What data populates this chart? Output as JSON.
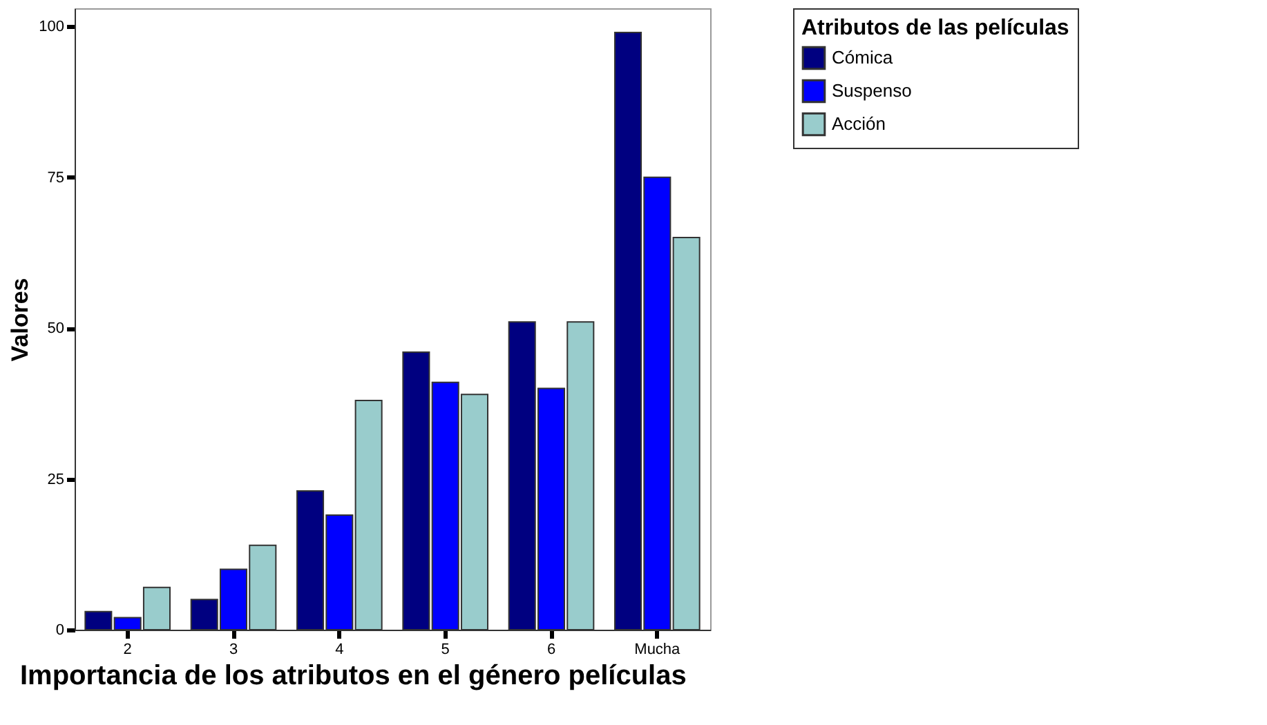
{
  "chart_data": {
    "type": "bar",
    "xlabel": "Importancia de los atributos en el género películas",
    "ylabel": "Valores",
    "legend_title": "Atributos de las películas",
    "categories": [
      "2",
      "3",
      "4",
      "5",
      "6",
      "Mucha"
    ],
    "series": [
      {
        "name": "Cómica",
        "color": "#000080",
        "values": [
          3,
          5,
          23,
          46,
          51,
          99
        ]
      },
      {
        "name": "Suspenso",
        "color": "#0000ff",
        "values": [
          2,
          10,
          19,
          41,
          40,
          75
        ]
      },
      {
        "name": "Acción",
        "color": "#99cccc",
        "values": [
          7,
          14,
          38,
          39,
          51,
          65
        ]
      }
    ],
    "ylim": [
      0,
      103
    ],
    "yticks": [
      0,
      25,
      50,
      75,
      100
    ],
    "grid": false,
    "legend": "top right"
  }
}
